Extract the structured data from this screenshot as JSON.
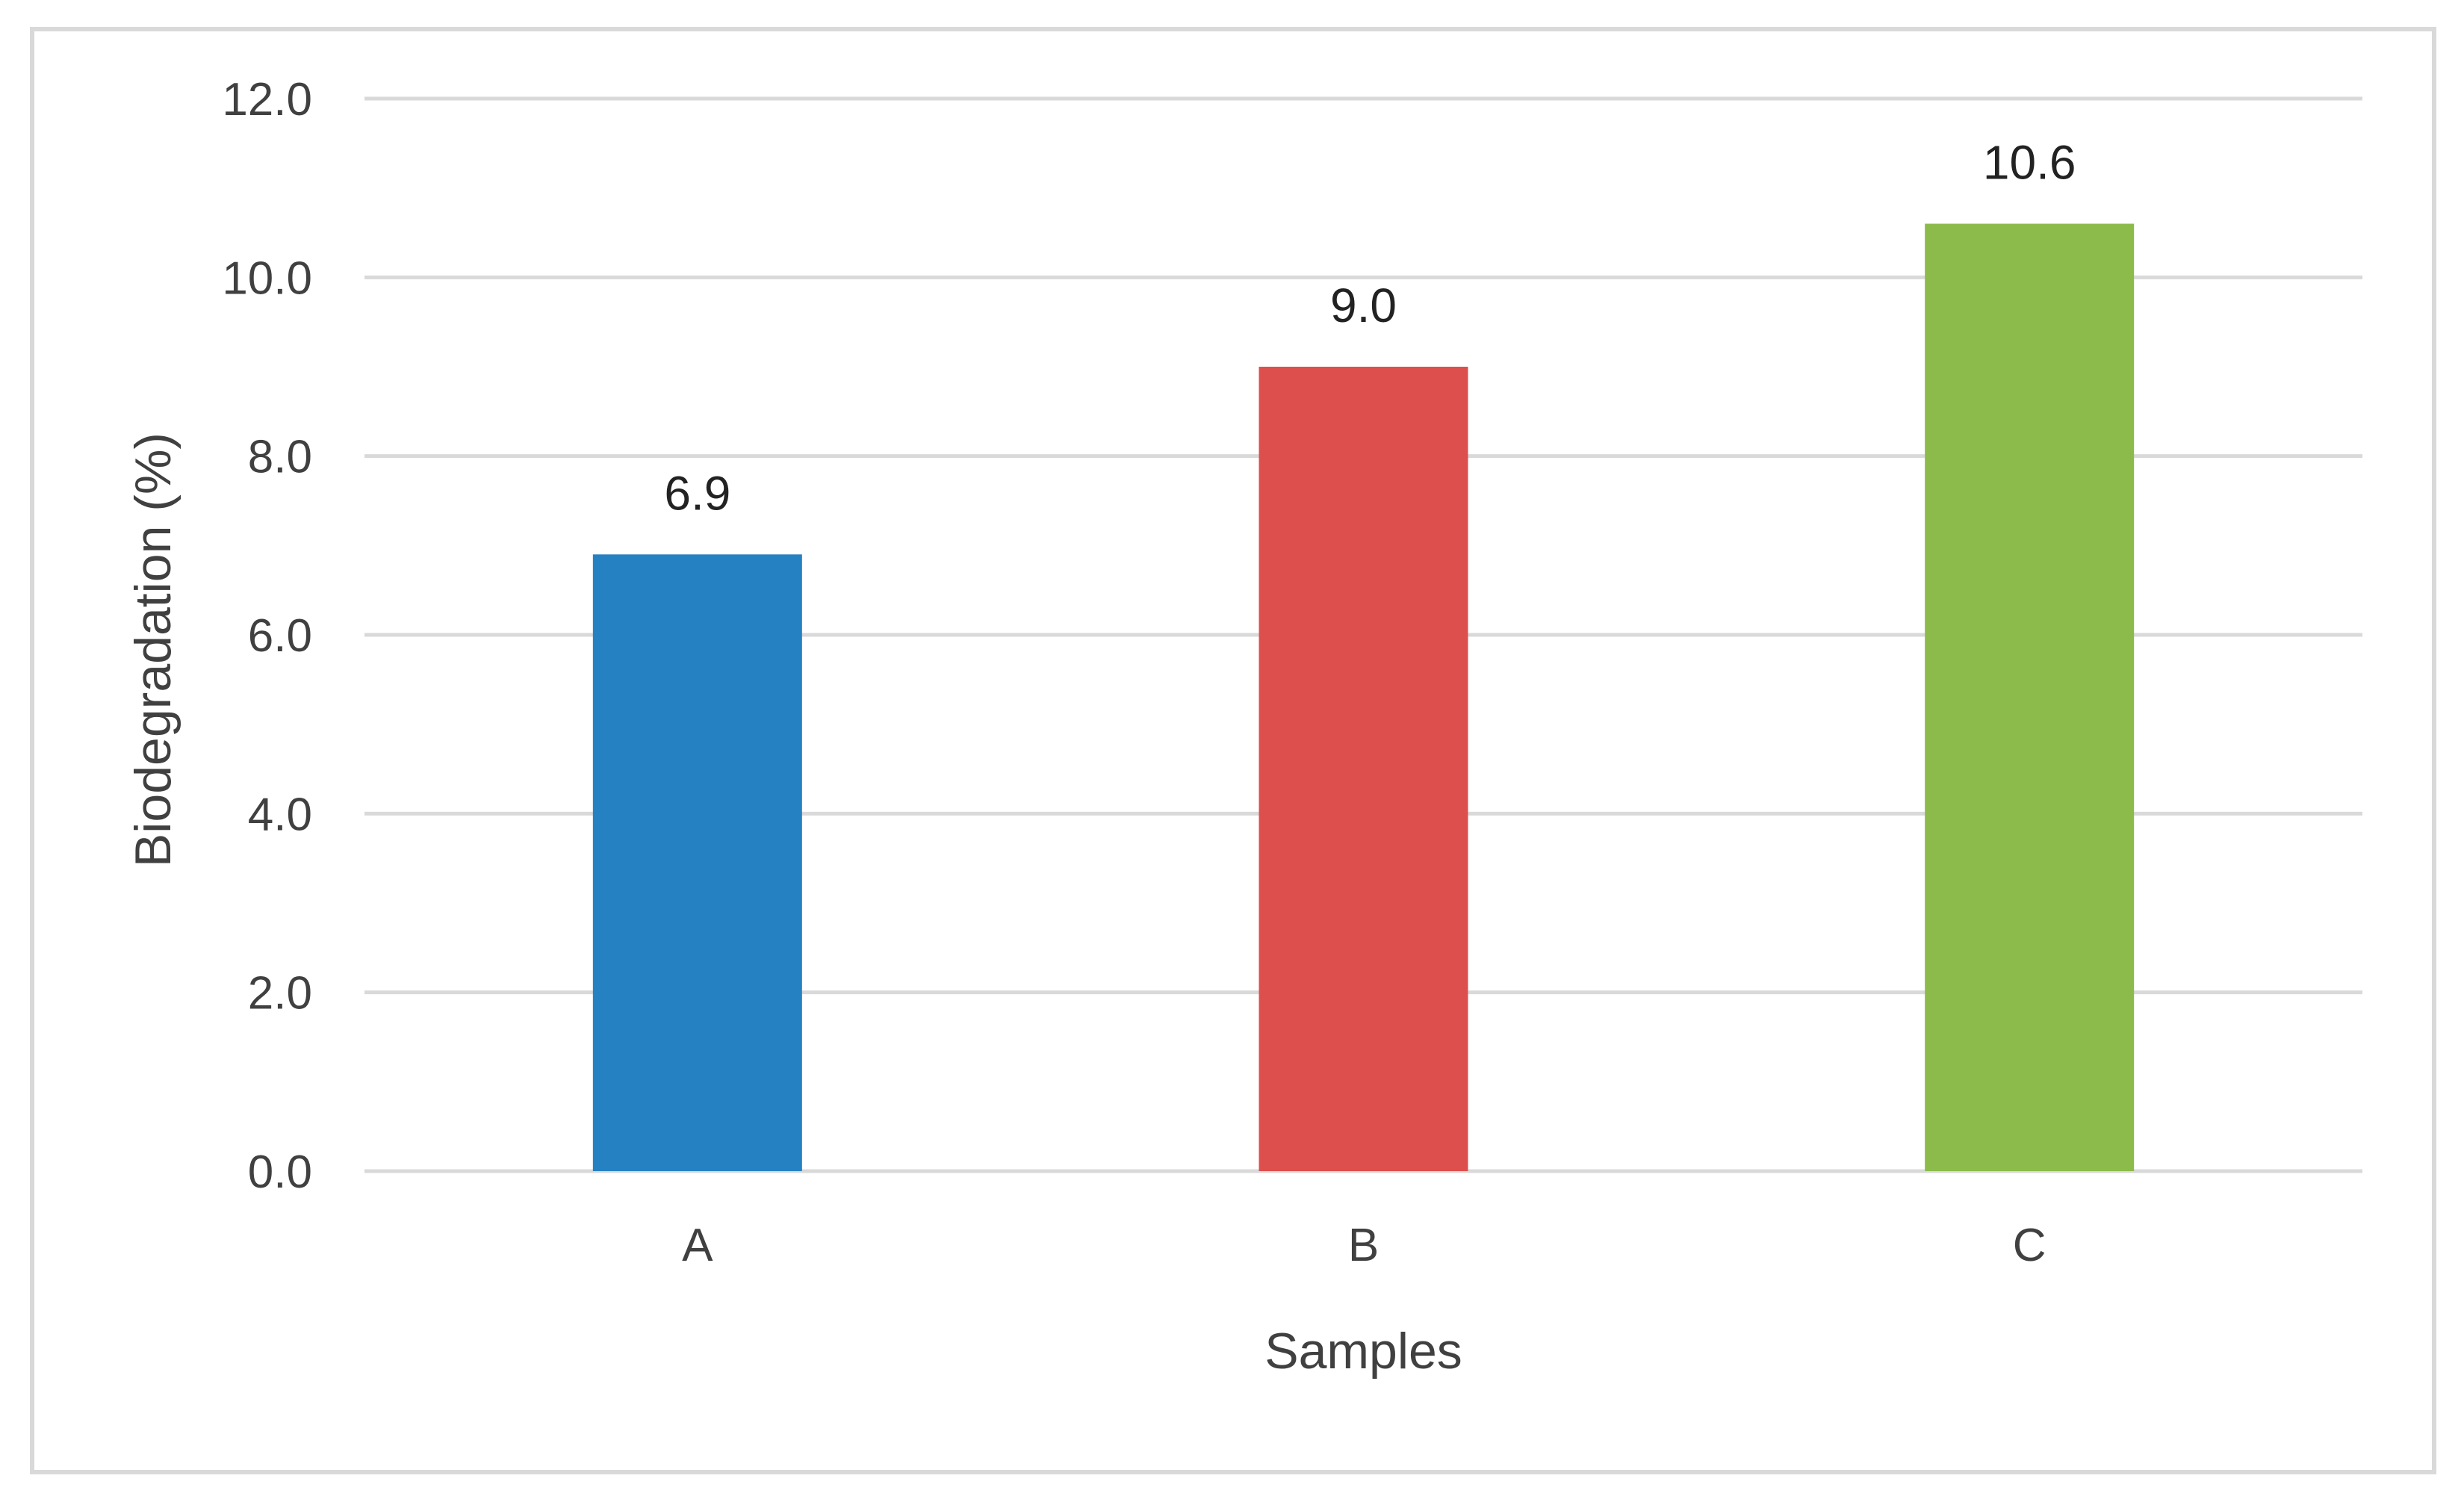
{
  "chart_data": {
    "type": "bar",
    "categories": [
      "A",
      "B",
      "C"
    ],
    "values": [
      6.9,
      9.0,
      10.6
    ],
    "data_labels": [
      "6.9",
      "9.0",
      "10.6"
    ],
    "colors": [
      "#2681c2",
      "#dc4f4d",
      "#8cbb4b"
    ],
    "xlabel": "Samples",
    "ylabel": "Biodegradation (%)",
    "ylim": [
      0,
      12
    ],
    "yticks": [
      0,
      2,
      4,
      6,
      8,
      10,
      12
    ],
    "ytick_labels": [
      "0.0",
      "2.0",
      "4.0",
      "6.0",
      "8.0",
      "10.0",
      "12.0"
    ],
    "grid": true,
    "legend": "none"
  }
}
